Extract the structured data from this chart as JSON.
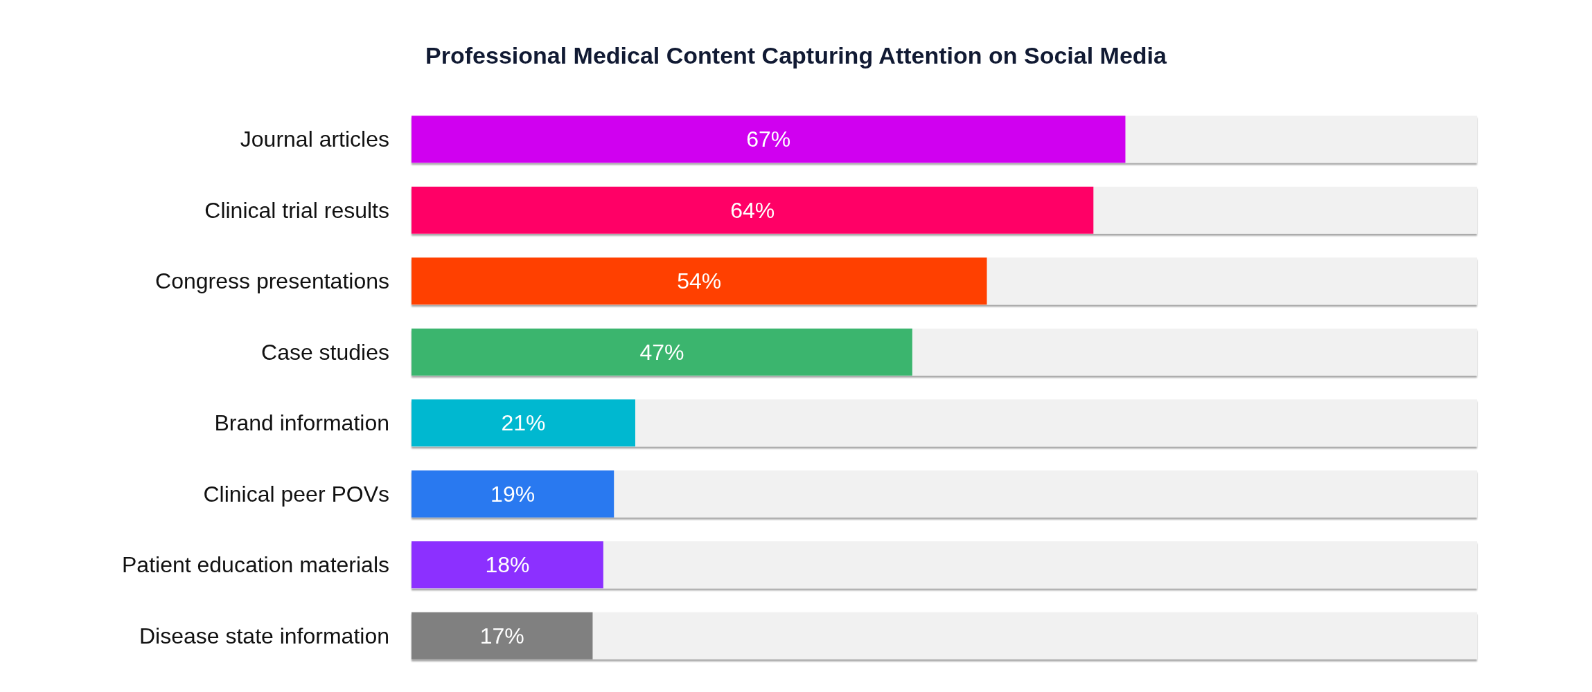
{
  "chart_data": {
    "type": "bar",
    "orientation": "horizontal",
    "title": "Professional Medical Content Capturing Attention on Social Media",
    "categories": [
      "Journal articles",
      "Clinical trial results",
      "Congress presentations",
      "Case studies",
      "Brand information",
      "Clinical peer POVs",
      "Patient education materials",
      "Disease state information"
    ],
    "values": [
      67,
      64,
      54,
      47,
      21,
      19,
      18,
      17
    ],
    "value_labels": [
      "67%",
      "64%",
      "54%",
      "47%",
      "21%",
      "19%",
      "18%",
      "17%"
    ],
    "colors": [
      "#d000f0",
      "#ff0066",
      "#ff4000",
      "#3bb56e",
      "#00b8d0",
      "#2979f0",
      "#8c30ff",
      "#808080"
    ],
    "xlim": [
      0,
      100
    ],
    "tick_labels": "y"
  }
}
